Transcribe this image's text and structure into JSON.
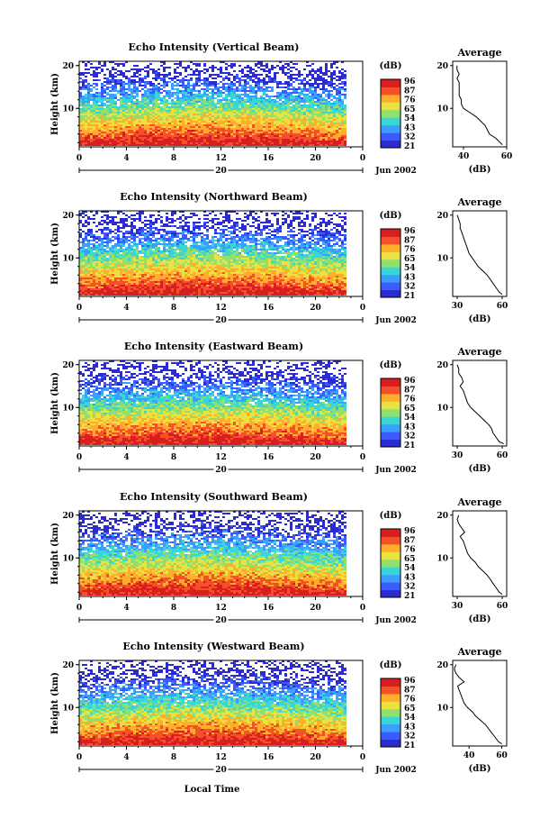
{
  "figure": {
    "bottom_xlabel": "Local Time",
    "date_label": "Jun 2002",
    "day_label": "20",
    "colorbar_unit": "(dB)",
    "colorbar_ticks": [
      "96",
      "87",
      "76",
      "65",
      "54",
      "43",
      "32",
      "21"
    ],
    "colorscale": [
      "#2b2bd0",
      "#3b5bff",
      "#3aa0ff",
      "#39d6d6",
      "#8ee070",
      "#e9e240",
      "#ffad2a",
      "#f4502a",
      "#d81e1e"
    ],
    "heatmap_y_ticks": [
      "20",
      "10"
    ],
    "heatmap_x_ticks": [
      "0",
      "4",
      "8",
      "12",
      "16",
      "20",
      "0"
    ],
    "ylabel": "Height (km)",
    "average_title": "Average",
    "average_y_ticks": [
      "20",
      "10"
    ],
    "average_xlabel": "(dB)"
  },
  "chart_data": [
    {
      "type": "heatmap",
      "title": "Echo Intensity (Vertical Beam)",
      "ylabel": "Height (km)",
      "x_range": [
        0,
        24
      ],
      "y_range": [
        1,
        21
      ],
      "z_range": [
        21,
        96
      ],
      "average": {
        "type": "line",
        "title": "Average",
        "xlabel": "(dB)",
        "xlim": [
          35,
          60
        ],
        "x_ticks": [
          "40",
          "60"
        ],
        "height": [
          1.5,
          2,
          3,
          4,
          5,
          6,
          7,
          8,
          9,
          10,
          11,
          12,
          13,
          14,
          15,
          16,
          17,
          18,
          19,
          20
        ],
        "db": [
          58,
          57,
          55,
          52,
          51,
          50,
          48,
          46,
          43,
          40,
          39,
          39,
          38,
          38,
          38,
          38,
          37,
          38,
          37,
          37
        ]
      }
    },
    {
      "type": "heatmap",
      "title": "Echo Intensity (Northward Beam)",
      "ylabel": "Height (km)",
      "x_range": [
        0,
        24
      ],
      "y_range": [
        1,
        21
      ],
      "z_range": [
        21,
        96
      ],
      "average": {
        "type": "line",
        "title": "Average",
        "xlabel": "(dB)",
        "xlim": [
          27,
          63
        ],
        "x_ticks": [
          "30",
          "60"
        ],
        "height": [
          1.5,
          2,
          3,
          4,
          5,
          6,
          7,
          8,
          9,
          10,
          11,
          12,
          13,
          14,
          15,
          16,
          17,
          18,
          19,
          20
        ],
        "db": [
          60,
          58,
          56,
          54,
          52,
          50,
          47,
          44,
          42,
          40,
          38,
          37,
          36,
          35,
          34,
          33,
          32,
          32,
          31,
          30
        ]
      }
    },
    {
      "type": "heatmap",
      "title": "Echo Intensity (Eastward Beam)",
      "ylabel": "Height (km)",
      "x_range": [
        0,
        24
      ],
      "y_range": [
        1,
        21
      ],
      "z_range": [
        21,
        96
      ],
      "average": {
        "type": "line",
        "title": "Average",
        "xlabel": "(dB)",
        "xlim": [
          27,
          63
        ],
        "x_ticks": [
          "30",
          "60"
        ],
        "height": [
          1.5,
          2,
          3,
          4,
          5,
          6,
          7,
          8,
          9,
          10,
          11,
          12,
          13,
          14,
          15,
          16,
          17,
          18,
          19,
          20
        ],
        "db": [
          61,
          58,
          56,
          54,
          53,
          51,
          48,
          45,
          42,
          39,
          37,
          36,
          35,
          34,
          32,
          34,
          33,
          31,
          31,
          30
        ]
      }
    },
    {
      "type": "heatmap",
      "title": "Echo Intensity (Southward Beam)",
      "ylabel": "Height (km)",
      "x_range": [
        0,
        24
      ],
      "y_range": [
        1,
        21
      ],
      "z_range": [
        21,
        96
      ],
      "average": {
        "type": "line",
        "title": "Average",
        "xlabel": "(dB)",
        "xlim": [
          27,
          63
        ],
        "x_ticks": [
          "30",
          "60"
        ],
        "height": [
          1.5,
          2,
          3,
          4,
          5,
          6,
          7,
          8,
          9,
          10,
          11,
          12,
          13,
          14,
          15,
          16,
          17,
          18,
          19,
          20
        ],
        "db": [
          60,
          58,
          56,
          54,
          52,
          50,
          47,
          44,
          42,
          39,
          37,
          36,
          35,
          34,
          32,
          35,
          33,
          31,
          30,
          31
        ]
      }
    },
    {
      "type": "heatmap",
      "title": "Echo Intensity (Westward Beam)",
      "ylabel": "Height (km)",
      "x_range": [
        0,
        24
      ],
      "y_range": [
        1,
        21
      ],
      "z_range": [
        21,
        96
      ],
      "average": {
        "type": "line",
        "title": "Average",
        "xlabel": "(dB)",
        "xlim": [
          30,
          63
        ],
        "x_ticks": [
          "40",
          "60"
        ],
        "height": [
          1.5,
          2,
          3,
          4,
          5,
          6,
          7,
          8,
          9,
          10,
          11,
          12,
          13,
          14,
          15,
          16,
          17,
          18,
          19,
          20
        ],
        "db": [
          60,
          58,
          56,
          54,
          52,
          50,
          47,
          44,
          42,
          39,
          37,
          36,
          35,
          34,
          33,
          37,
          34,
          32,
          31,
          32
        ]
      }
    }
  ]
}
